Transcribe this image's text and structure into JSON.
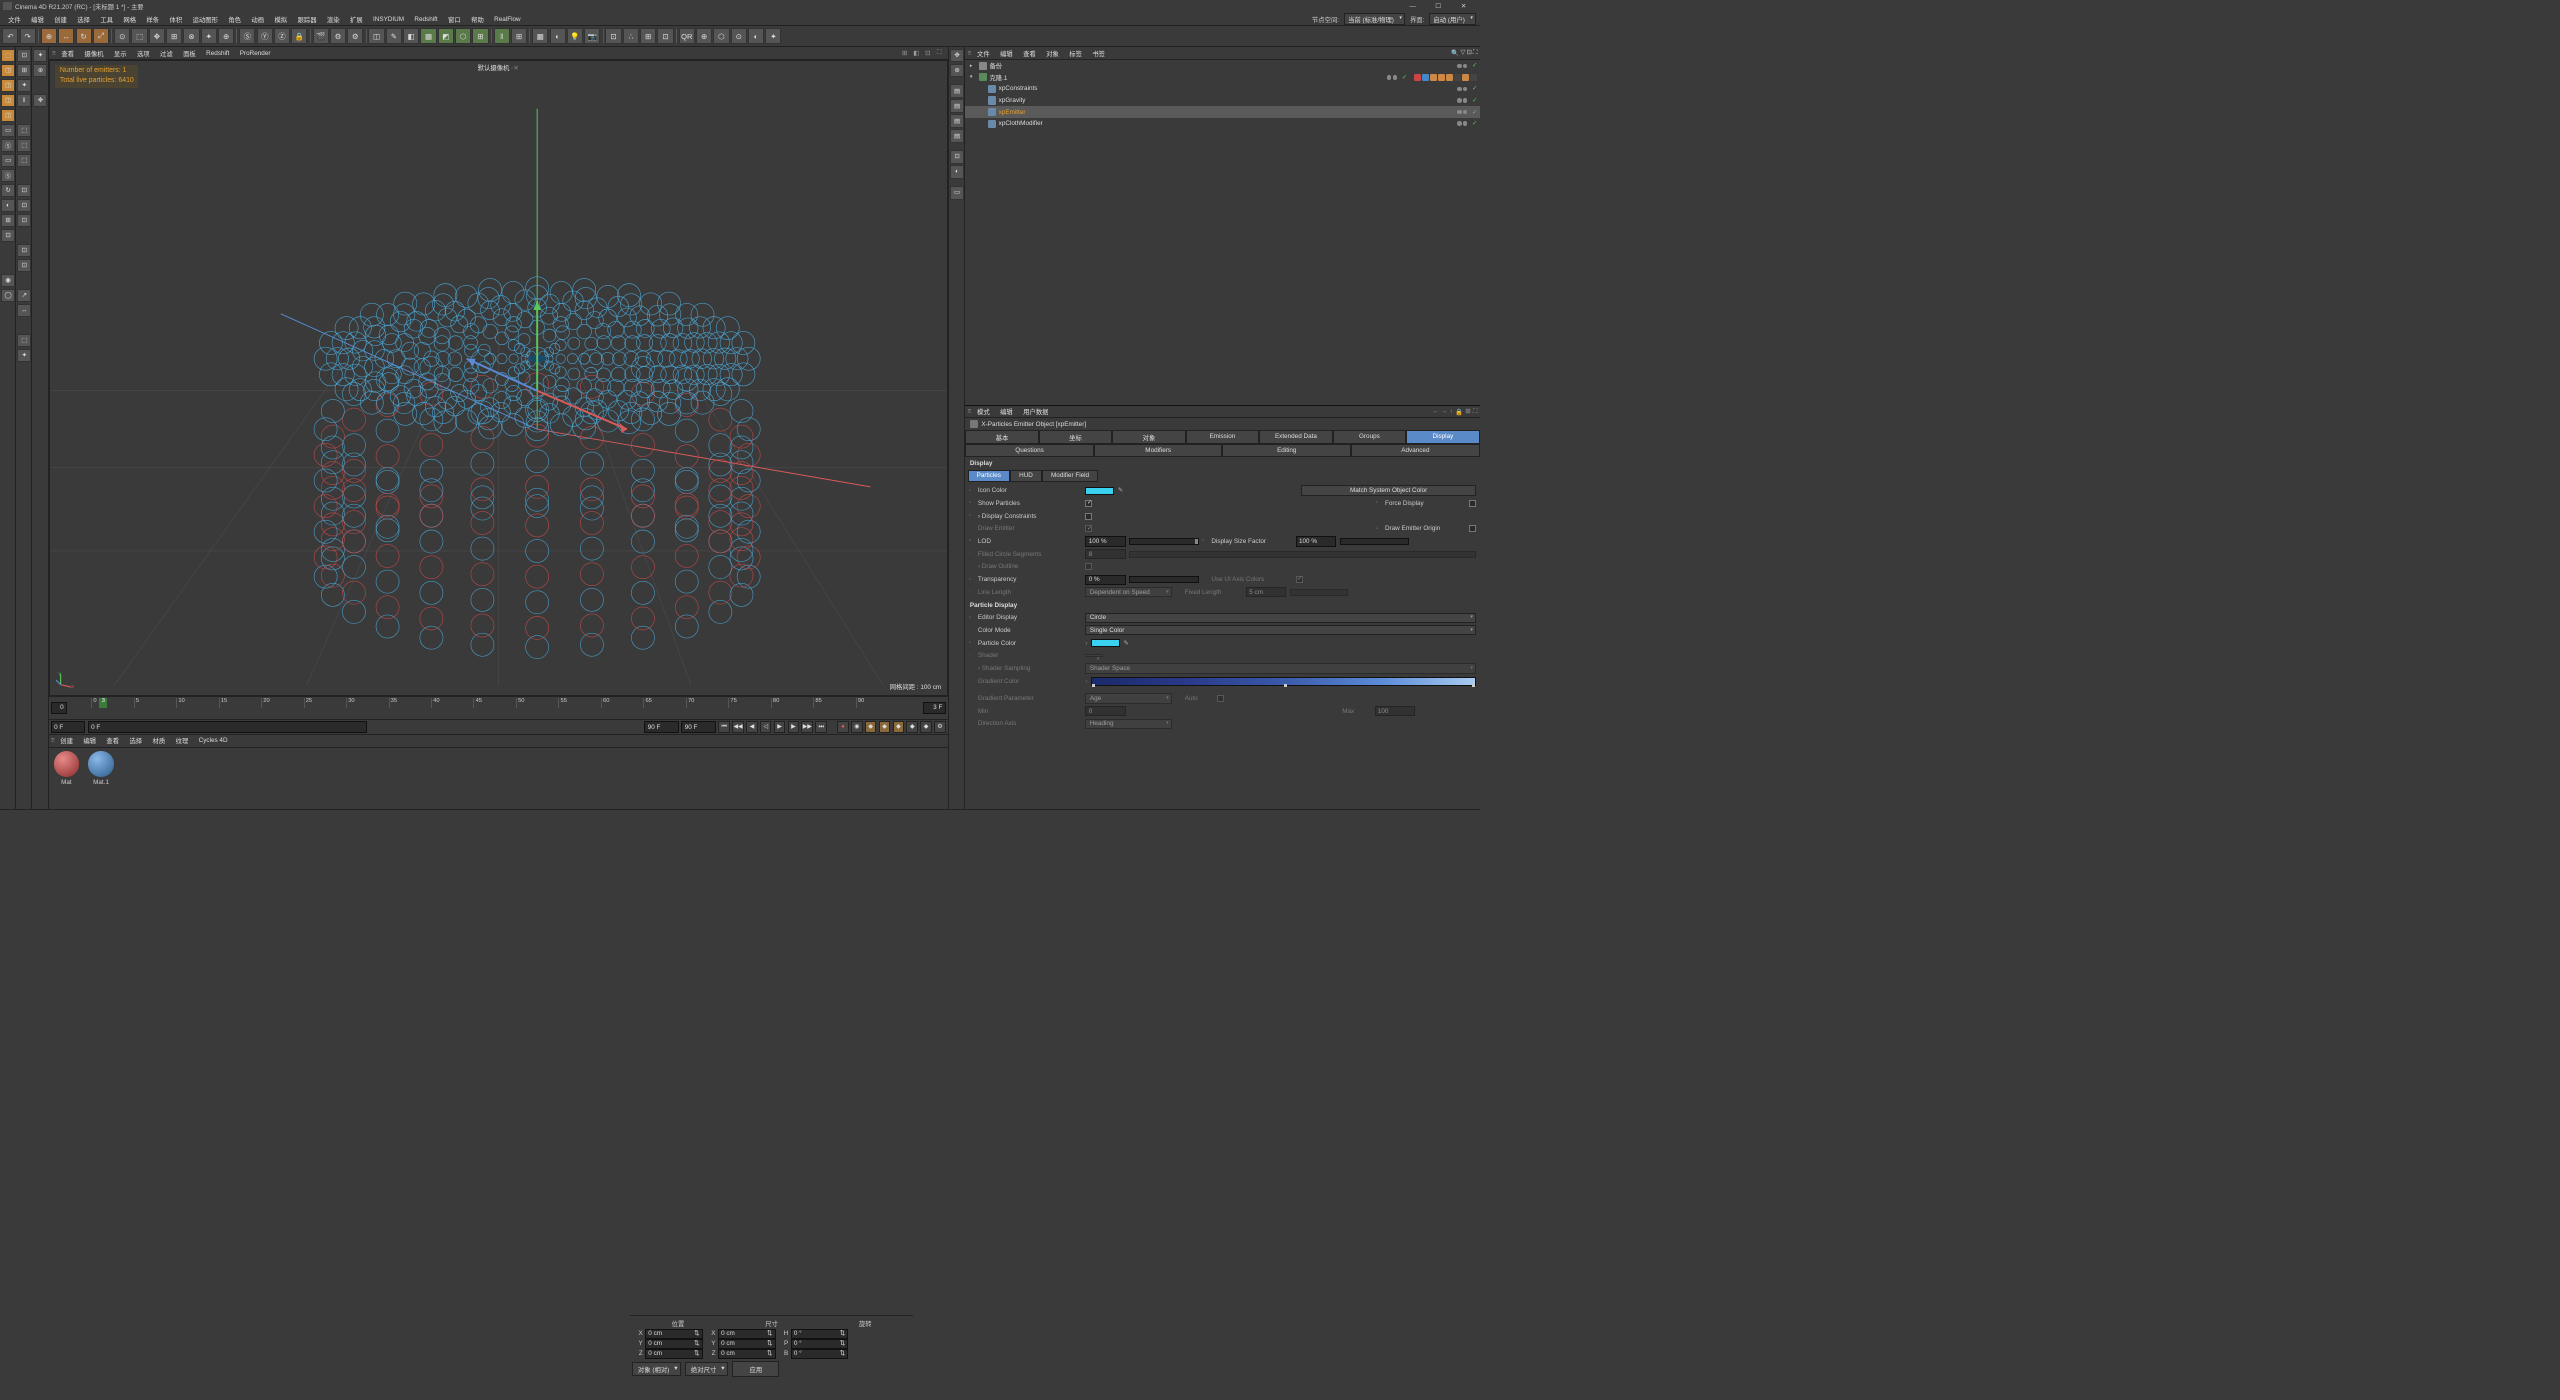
{
  "title": "Cinema 4D R21.207 (RC) - [未标题 1 *] - 主要",
  "menus": [
    "文件",
    "编辑",
    "创建",
    "选择",
    "工具",
    "网格",
    "样条",
    "体积",
    "运动图形",
    "角色",
    "动画",
    "模拟",
    "跟踪器",
    "渲染",
    "扩展",
    "INSYDIUM",
    "Redshift",
    "窗口",
    "帮助",
    "RealFlow"
  ],
  "layout_right": {
    "nodespace_label": "节点空间:",
    "nodespace_value": "当前 (标准/物理)",
    "interface_label": "界面:",
    "interface_value": "启动 (用户)"
  },
  "viewmenu": [
    "查看",
    "摄像机",
    "显示",
    "选项",
    "过滤",
    "面板",
    "Redshift",
    "ProRender"
  ],
  "hud": {
    "emitters": "Number of emitters: 1",
    "particles": "Total live particles: 6410"
  },
  "camera_label": "默认摄像机",
  "grid_label": "网格间距 : 100 cm",
  "timeline": {
    "ticks": [
      "0",
      "5",
      "10",
      "15",
      "20",
      "25",
      "30",
      "35",
      "40",
      "45",
      "50",
      "55",
      "60",
      "65",
      "70",
      "75",
      "80",
      "85",
      "90"
    ],
    "cur": "3",
    "cur_right": "3 F",
    "start": "0 F",
    "start2": "0 F",
    "end": "90 F",
    "end2": "90 F"
  },
  "materials_menu": [
    "创建",
    "编辑",
    "查看",
    "选择",
    "材质",
    "纹理",
    "Cycles 4D"
  ],
  "materials": [
    {
      "name": "Mat",
      "c1": "#8a2a2a",
      "c2": "#e88a8a"
    },
    {
      "name": "Mat.1",
      "c1": "#2a5a8a",
      "c2": "#8ab8e8"
    }
  ],
  "obj_menu": [
    "文件",
    "编辑",
    "查看",
    "对象",
    "标签",
    "书签"
  ],
  "objects": [
    {
      "name": "备份",
      "icon": "#888",
      "indent": 0,
      "exp": "▸"
    },
    {
      "name": "克隆.1",
      "icon": "#5a8a5a",
      "indent": 0,
      "exp": "▾",
      "tags": [
        "#c44",
        "#48c",
        "#c84",
        "#c84",
        "#c84",
        "#444",
        "#c84",
        "#444"
      ]
    },
    {
      "name": "xpConstraints",
      "icon": "#6a8aaa",
      "indent": 1
    },
    {
      "name": "xpGravity",
      "icon": "#6a8aaa",
      "indent": 1
    },
    {
      "name": "xpEmitter",
      "icon": "#6a8aaa",
      "indent": 1,
      "sel": true,
      "hl": true
    },
    {
      "name": "xpClothModifier",
      "icon": "#6a8aaa",
      "indent": 1
    }
  ],
  "attr_menu": [
    "模式",
    "编辑",
    "用户数据"
  ],
  "attr_header": "X-Particles Emitter Object [xpEmitter]",
  "tabs1": [
    "基本",
    "坐标",
    "对象",
    "Emission",
    "Extended Data",
    "Groups",
    "Display"
  ],
  "tabs1_active": "Display",
  "tabs2": [
    "Questions",
    "Modifiers",
    "Editing",
    "Advanced"
  ],
  "group_display": "Display",
  "subtabs": [
    "Particles",
    "HUD",
    "Modifier Field"
  ],
  "subtabs_active": "Particles",
  "props": {
    "icon_color": {
      "label": "Icon Color",
      "color": "#3ad0f0"
    },
    "match_btn": "Match System Object Color",
    "show_particles": {
      "label": "Show Particles",
      "on": true
    },
    "force_display": {
      "label": "Force Display",
      "on": false
    },
    "display_constraints": {
      "label": "Display Constraints",
      "on": false,
      "sub": true
    },
    "draw_emitter": {
      "label": "Draw Emitter",
      "on": true,
      "dim": true
    },
    "draw_emitter_origin": {
      "label": "Draw Emitter Origin",
      "on": false
    },
    "lod": {
      "label": "LOD",
      "value": "100 %"
    },
    "display_size_factor": {
      "label": "Display Size Factor",
      "value": "100 %"
    },
    "filled_circle": {
      "label": "Filled Circle Segments",
      "value": "8",
      "dim": true
    },
    "draw_outline": {
      "label": "Draw Outline",
      "on": false,
      "sub": true,
      "dim": true
    },
    "transparency": {
      "label": "Transparency",
      "value": "0 %"
    },
    "ui_axis_colors": {
      "label": "Use UI Axis Colors",
      "on": true,
      "dim": true
    },
    "line_length": {
      "label": "Line Length",
      "value": "Dependent on Speed",
      "dim": true
    },
    "fixed_length": {
      "label": "Fixed Length",
      "value": "5 cm",
      "dim": true
    },
    "group_particle_display": "Particle Display",
    "editor_display": {
      "label": "Editor Display",
      "value": "Circle"
    },
    "color_mode": {
      "label": "Color Mode",
      "value": "Single Color"
    },
    "particle_color": {
      "label": "Particle Color",
      "color": "#3ad0f0"
    },
    "shader": {
      "label": "Shader",
      "value": "",
      "dim": true
    },
    "shader_sampling": {
      "label": "Shader Sampling",
      "value": "Shader Space",
      "dim": true,
      "sub": true
    },
    "gradient_color": {
      "label": "Gradient Color",
      "dim": true
    },
    "gradient_parameter": {
      "label": "Gradient Parameter",
      "value": "Age",
      "dim": true
    },
    "auto": {
      "label": "Auto",
      "on": false,
      "dim": true
    },
    "min": {
      "label": "Min",
      "value": "0",
      "dim": true
    },
    "max": {
      "label": "Max",
      "value": "100",
      "dim": true
    },
    "direction_axis": {
      "label": "Direction Axis",
      "value": "Heading",
      "dim": true
    }
  },
  "coords": {
    "headers": [
      "位置",
      "尺寸",
      "旋转"
    ],
    "rows": [
      {
        "a": "X",
        "p": "0 cm",
        "s": "X",
        "sv": "0 cm",
        "r": "H",
        "rv": "0 °"
      },
      {
        "a": "Y",
        "p": "0 cm",
        "s": "Y",
        "sv": "0 cm",
        "r": "P",
        "rv": "0 °"
      },
      {
        "a": "Z",
        "p": "0 cm",
        "s": "Z",
        "sv": "0 cm",
        "r": "B",
        "rv": "0 °"
      }
    ],
    "mode1": "对象 (相对)",
    "mode2": "绝对尺寸",
    "apply": "应用"
  },
  "scene_colors": {
    "bg": "#3a3a3a",
    "blue": "#4aa8d8",
    "blue_dark": "#2a6a9a",
    "red": "#c84a4a",
    "axis_x": "#d85a5a",
    "axis_y": "#5ac85a",
    "axis_z": "#5a8ad8"
  }
}
